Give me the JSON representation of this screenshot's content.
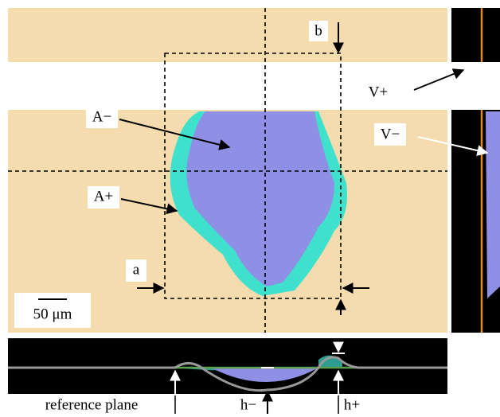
{
  "annotations": {
    "b": "b",
    "v_plus": "V+",
    "a_minus": "A−",
    "v_minus": "V−",
    "a_plus": "A+",
    "a": "a",
    "scale": "50 μm",
    "reference_plane": "reference plane",
    "h_minus": "h−",
    "h_plus": "h+"
  }
}
